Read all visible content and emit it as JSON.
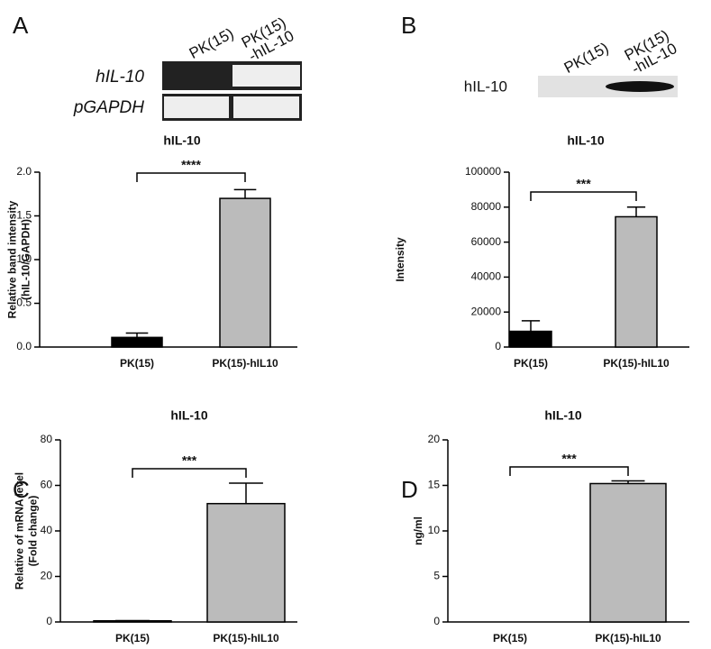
{
  "chart_data": [
    {
      "type": "bar",
      "panel": "A",
      "title": "hIL-10",
      "gel": {
        "row_labels": [
          "hIL-10",
          "pGAPDH"
        ],
        "lane_labels": [
          [
            "PK(15)"
          ],
          [
            "PK(15)",
            "-hIL-10"
          ]
        ]
      },
      "ylabel": [
        "Relative band intensity",
        "(hIL-10/GAPDH)"
      ],
      "categories": [
        "PK(15)",
        "PK(15)-hIL10"
      ],
      "values": [
        0.11,
        1.7
      ],
      "errors": [
        0.05,
        0.1
      ],
      "colors": [
        "#000000",
        "#bbbbbb"
      ],
      "annotation": "****",
      "ylim": [
        0,
        2
      ],
      "yticks": [
        {
          "value": 0,
          "label": "0.0"
        },
        0.5,
        {
          "value": 1,
          "label": "1.0"
        },
        1.5,
        {
          "value": 2,
          "label": "2.0"
        }
      ]
    },
    {
      "type": "bar",
      "panel": "B",
      "title": "hIL-10",
      "blot": {
        "row_labels": [
          "hIL-10"
        ],
        "lane_labels": [
          [
            "PK(15)"
          ],
          [
            "PK(15)",
            "-hIL-10"
          ]
        ]
      },
      "ylabel": [
        "Intensity"
      ],
      "categories": [
        "PK(15)",
        "PK(15)-hIL10"
      ],
      "values": [
        9000,
        74500
      ],
      "errors": [
        6000,
        5500
      ],
      "colors": [
        "#000000",
        "#bbbbbb"
      ],
      "annotation": "***",
      "ylim": [
        0,
        100000
      ],
      "yticks": [
        0,
        20000,
        40000,
        60000,
        80000,
        100000
      ]
    },
    {
      "type": "bar",
      "panel": "C",
      "title": "hIL-10",
      "ylabel": [
        "Relative of mRNA level",
        "(Fold change)"
      ],
      "categories": [
        "PK(15)",
        "PK(15)-hIL10"
      ],
      "values": [
        0.5,
        52
      ],
      "errors": [
        0.1,
        9
      ],
      "colors": [
        "#000000",
        "#bbbbbb"
      ],
      "annotation": "***",
      "ylim": [
        0,
        80
      ],
      "yticks": [
        0,
        20,
        40,
        60,
        80
      ]
    },
    {
      "type": "bar",
      "panel": "D",
      "title": "hIL-10",
      "ylabel": [
        "ng/ml"
      ],
      "categories": [
        "PK(15)",
        "PK(15)-hIL10"
      ],
      "values": [
        0,
        15.2
      ],
      "errors": [
        null,
        0.3
      ],
      "colors": [
        "#000000",
        "#bbbbbb"
      ],
      "annotation": "***",
      "ylim": [
        0,
        20
      ],
      "yticks": [
        0,
        5,
        10,
        15,
        20
      ]
    }
  ]
}
